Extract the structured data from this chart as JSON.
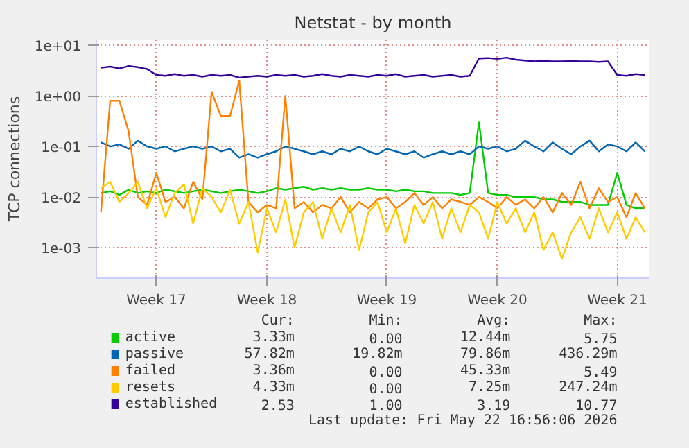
{
  "chart_data": {
    "type": "line",
    "title": "Netstat - by month",
    "ylabel": "TCP connections",
    "log": true,
    "grid": true,
    "legend": "bottom",
    "ylim": [
      0.00025,
      13
    ],
    "yticks": [
      {
        "value": 0.001,
        "label": "1e-03"
      },
      {
        "value": 0.01,
        "label": "1e-02"
      },
      {
        "value": 0.1,
        "label": "1e-01"
      },
      {
        "value": 1,
        "label": "1e+00"
      },
      {
        "value": 10,
        "label": "1e+01"
      }
    ],
    "categories": [
      null,
      null,
      null,
      null,
      null,
      null,
      "Week 17",
      null,
      null,
      null,
      null,
      null,
      null,
      null,
      null,
      null,
      null,
      null,
      "Week 18",
      null,
      null,
      null,
      null,
      null,
      null,
      null,
      null,
      null,
      null,
      null,
      null,
      "Week 19",
      null,
      null,
      null,
      null,
      null,
      null,
      null,
      null,
      null,
      null,
      null,
      "Week 20",
      null,
      null,
      null,
      null,
      null,
      null,
      null,
      null,
      null,
      null,
      null,
      null,
      "Week 21",
      null,
      null,
      null
    ],
    "series": [
      {
        "name": "active",
        "color": "#00cc00",
        "values": [
          0.012,
          0.013,
          0.011,
          0.014,
          0.012,
          0.013,
          0.012,
          0.014,
          0.013,
          0.012,
          0.013,
          0.014,
          0.013,
          0.012,
          0.013,
          0.014,
          0.013,
          0.012,
          0.013,
          0.015,
          0.014,
          0.015,
          0.016,
          0.014,
          0.015,
          0.014,
          0.015,
          0.014,
          0.014,
          0.015,
          0.014,
          0.014,
          0.013,
          0.014,
          0.013,
          0.013,
          0.012,
          0.012,
          0.012,
          0.011,
          0.012,
          0.3,
          0.012,
          0.011,
          0.011,
          0.01,
          0.01,
          0.01,
          0.009,
          0.009,
          0.008,
          0.008,
          0.008,
          0.007,
          0.007,
          0.007,
          0.03,
          0.007,
          0.006,
          0.006
        ]
      },
      {
        "name": "passive",
        "color": "#0066b3",
        "values": [
          0.12,
          0.1,
          0.11,
          0.09,
          0.13,
          0.1,
          0.09,
          0.1,
          0.08,
          0.09,
          0.1,
          0.09,
          0.1,
          0.08,
          0.09,
          0.06,
          0.07,
          0.06,
          0.07,
          0.08,
          0.1,
          0.09,
          0.08,
          0.07,
          0.08,
          0.07,
          0.09,
          0.08,
          0.1,
          0.08,
          0.07,
          0.09,
          0.08,
          0.07,
          0.08,
          0.06,
          0.07,
          0.08,
          0.07,
          0.08,
          0.07,
          0.1,
          0.09,
          0.1,
          0.08,
          0.09,
          0.13,
          0.1,
          0.08,
          0.12,
          0.09,
          0.07,
          0.1,
          0.13,
          0.08,
          0.11,
          0.1,
          0.08,
          0.12,
          0.08
        ]
      },
      {
        "name": "failed",
        "color": "#ff8000",
        "values": [
          0.005,
          0.8,
          0.8,
          0.2,
          0.01,
          0.007,
          0.03,
          0.008,
          0.01,
          0.006,
          0.02,
          0.009,
          1.2,
          0.4,
          0.4,
          2.0,
          0.008,
          0.005,
          0.007,
          0.006,
          1.0,
          0.006,
          0.008,
          0.005,
          0.007,
          0.006,
          0.01,
          0.005,
          0.008,
          0.006,
          0.009,
          0.01,
          0.006,
          0.008,
          0.012,
          0.007,
          0.01,
          0.006,
          0.009,
          0.008,
          0.007,
          0.01,
          0.008,
          0.006,
          0.01,
          0.007,
          0.009,
          0.006,
          0.01,
          0.005,
          0.012,
          0.007,
          0.02,
          0.006,
          0.015,
          0.008,
          0.01,
          0.004,
          0.012,
          0.006
        ]
      },
      {
        "name": "resets",
        "color": "#ffcc00",
        "values": [
          0.015,
          0.02,
          0.008,
          0.012,
          0.02,
          0.006,
          0.015,
          0.004,
          0.012,
          0.018,
          0.003,
          0.015,
          0.01,
          0.005,
          0.014,
          0.003,
          0.008,
          0.0008,
          0.006,
          0.002,
          0.009,
          0.001,
          0.005,
          0.008,
          0.0015,
          0.006,
          0.002,
          0.007,
          0.0009,
          0.005,
          0.008,
          0.002,
          0.006,
          0.0012,
          0.007,
          0.003,
          0.008,
          0.0015,
          0.006,
          0.002,
          0.007,
          0.005,
          0.0015,
          0.008,
          0.003,
          0.006,
          0.002,
          0.005,
          0.0009,
          0.002,
          0.0006,
          0.002,
          0.004,
          0.0015,
          0.006,
          0.002,
          0.005,
          0.0015,
          0.004,
          0.002
        ]
      },
      {
        "name": "established",
        "color": "#330099",
        "values": [
          3.6,
          3.8,
          3.5,
          3.9,
          3.7,
          3.4,
          2.6,
          2.5,
          2.7,
          2.5,
          2.6,
          2.4,
          2.6,
          2.5,
          2.6,
          2.3,
          2.4,
          2.5,
          2.4,
          2.6,
          2.5,
          2.6,
          2.4,
          2.5,
          2.7,
          2.5,
          2.4,
          2.6,
          2.5,
          2.4,
          2.6,
          2.5,
          2.7,
          2.4,
          2.5,
          2.6,
          2.4,
          2.5,
          2.6,
          2.4,
          2.5,
          5.5,
          5.6,
          5.4,
          5.7,
          5.2,
          5.0,
          4.8,
          4.9,
          4.8,
          4.8,
          4.9,
          4.8,
          4.8,
          4.7,
          4.8,
          2.6,
          2.5,
          2.7,
          2.6
        ]
      }
    ],
    "annotations": [
      "Cur:",
      "Min:",
      "Avg:",
      "Max:",
      "3.33m",
      "0.00",
      "12.44m",
      "5.75",
      "57.82m",
      "19.82m",
      "79.86m",
      "436.29m",
      "3.36m",
      "0.00",
      "45.33m",
      "5.49",
      "4.33m",
      "0.00",
      "7.25m",
      "247.24m",
      "2.53",
      "1.00",
      "3.19",
      "10.77",
      "Last update: Fri May 22 16:56:06 2026"
    ]
  }
}
